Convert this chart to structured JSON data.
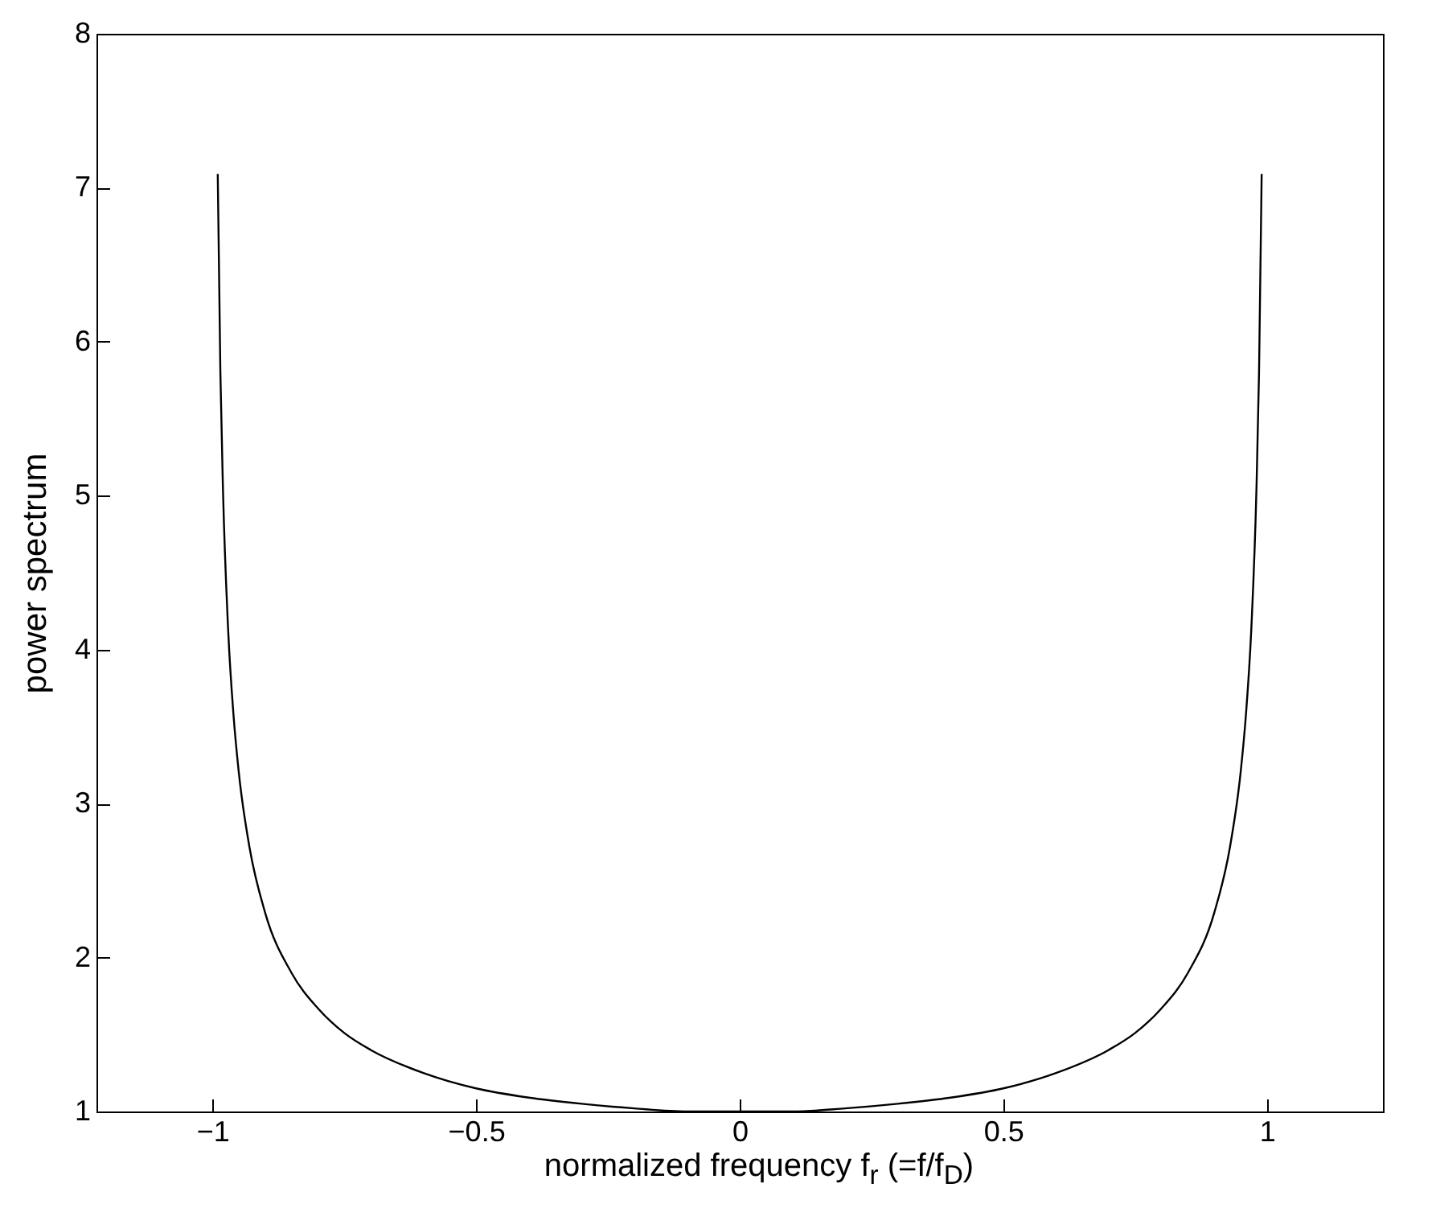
{
  "chart_data": {
    "type": "line",
    "xlabel": "normalized frequency f$_{r}$ (=f/f$_{D}$)",
    "ylabel": "power spectrum",
    "x": [
      -0.99,
      -0.985,
      -0.98,
      -0.97,
      -0.96,
      -0.95,
      -0.93,
      -0.9,
      -0.85,
      -0.8,
      -0.75,
      -0.7,
      -0.6,
      -0.5,
      -0.4,
      -0.3,
      -0.2,
      -0.1,
      0,
      0.1,
      0.2,
      0.3,
      0.4,
      0.5,
      0.6,
      0.7,
      0.75,
      0.8,
      0.85,
      0.9,
      0.93,
      0.95,
      0.96,
      0.97,
      0.98,
      0.985,
      0.99
    ],
    "series": [
      {
        "color": "#000000",
        "values": [
          7.09,
          5.8,
          5.03,
          4.11,
          3.57,
          3.2,
          2.72,
          2.29,
          1.9,
          1.67,
          1.51,
          1.4,
          1.25,
          1.15,
          1.09,
          1.05,
          1.02,
          1,
          1,
          1,
          1.02,
          1.05,
          1.09,
          1.15,
          1.25,
          1.4,
          1.51,
          1.67,
          1.9,
          2.29,
          2.72,
          3.2,
          3.57,
          4.11,
          5.03,
          5.8,
          7.09
        ]
      }
    ],
    "xlim": [
      -1.22,
      1.22
    ],
    "xticks": [
      {
        "value": -1,
        "label": "−1"
      },
      {
        "value": -0.5,
        "label": "−0.5"
      },
      0,
      0.5,
      1
    ],
    "ylim": [
      1,
      8
    ],
    "yticks": [
      1,
      2,
      3,
      4,
      5,
      6,
      7,
      8
    ],
    "grid": false,
    "marker": "none",
    "line_style": "solid"
  }
}
